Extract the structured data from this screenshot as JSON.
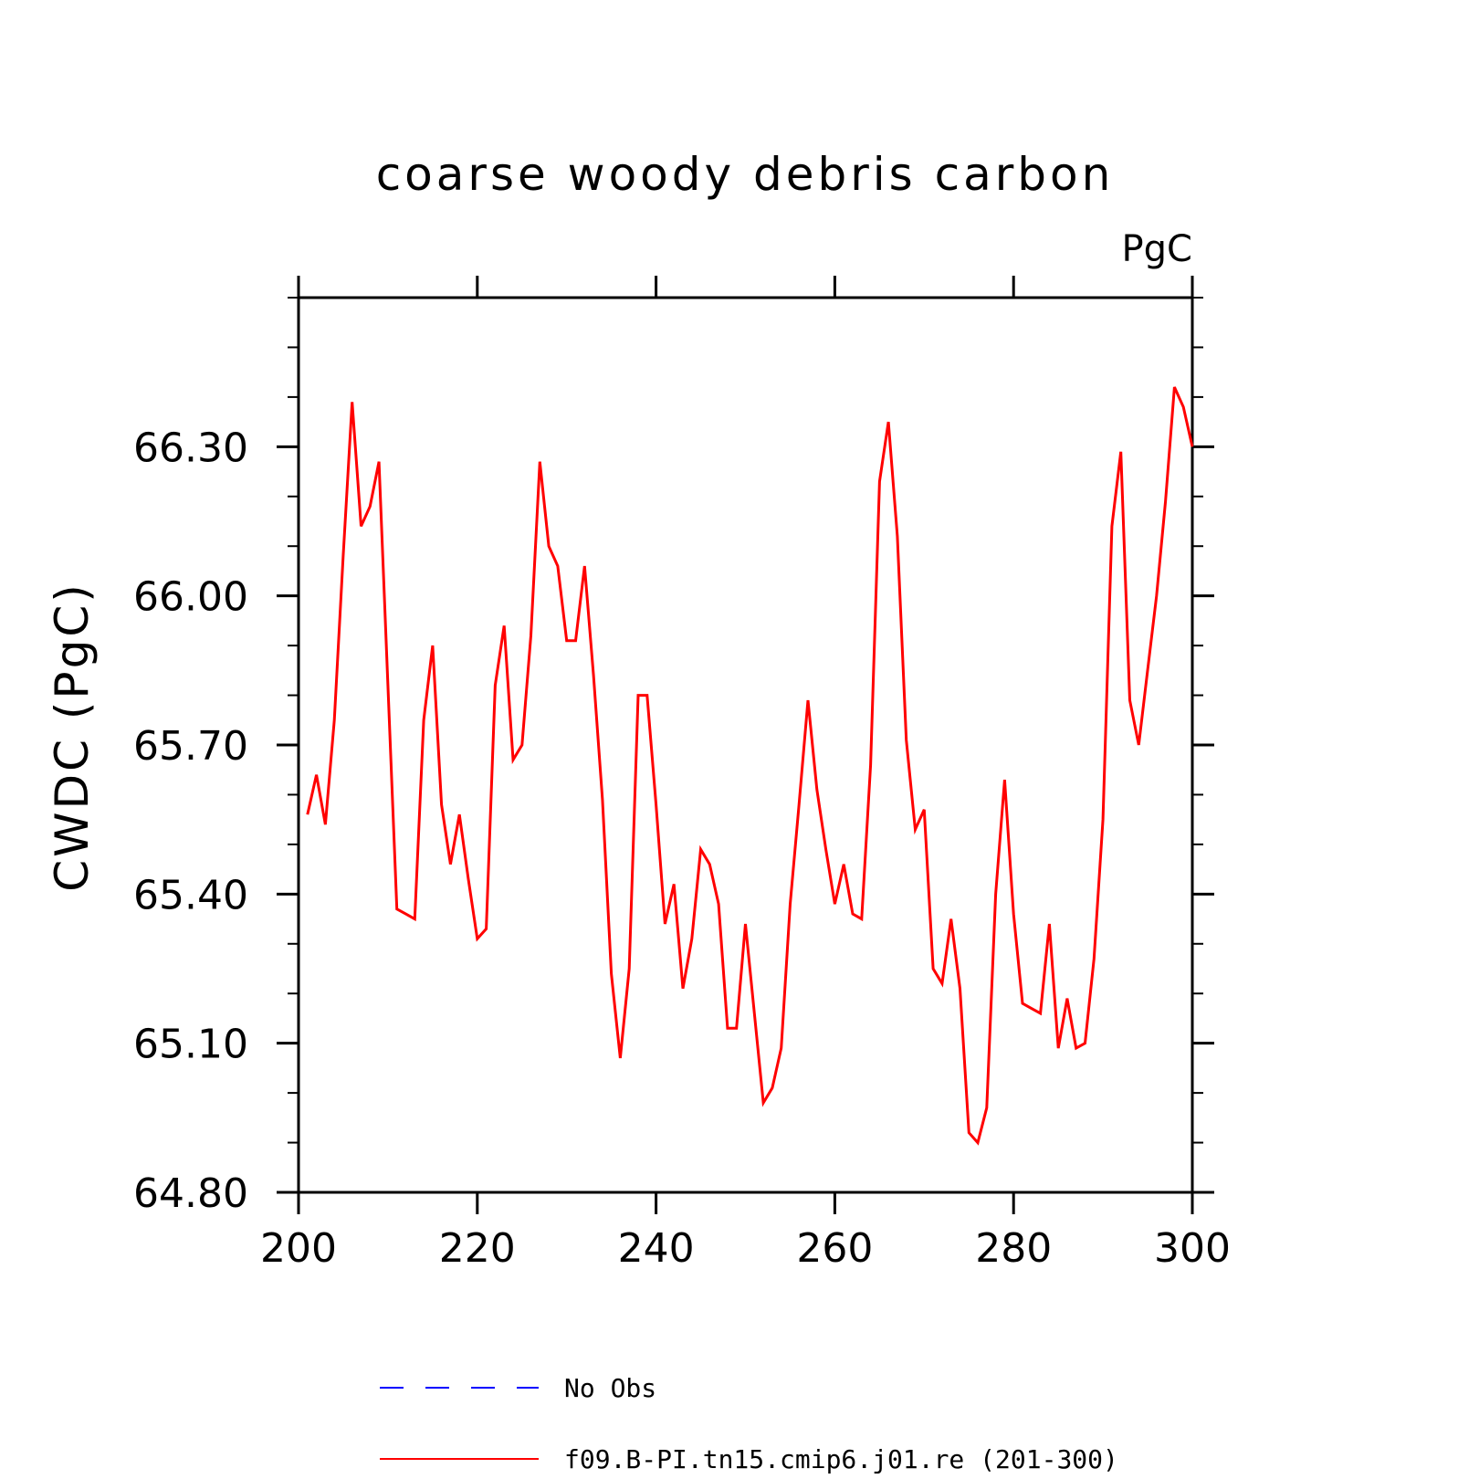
{
  "chart_data": {
    "type": "line",
    "title": "coarse woody debris carbon",
    "units": "PgC",
    "ylabel": "CWDC  (PgC)",
    "xlabel": "",
    "xlim": [
      200,
      300
    ],
    "ylim": [
      64.8,
      66.6
    ],
    "x_ticks": [
      200,
      220,
      240,
      260,
      280,
      300
    ],
    "y_ticks": [
      "64.80",
      "65.10",
      "65.40",
      "65.70",
      "66.00",
      "66.30"
    ],
    "legend_placement": "bottom",
    "colors": {
      "obs": "#0000ff",
      "model": "#ff0000"
    },
    "series": [
      {
        "name": "No Obs",
        "style": "dashed",
        "values": []
      },
      {
        "name": "f09.B-PI.tn15.cmip6.j01.re (201-300)",
        "style": "solid",
        "x_start": 201,
        "values": [
          65.56,
          65.64,
          65.54,
          65.75,
          66.08,
          66.39,
          66.14,
          66.18,
          66.27,
          65.82,
          65.37,
          65.36,
          65.35,
          65.75,
          65.9,
          65.58,
          65.46,
          65.56,
          65.43,
          65.31,
          65.33,
          65.82,
          65.94,
          65.67,
          65.7,
          65.92,
          66.27,
          66.1,
          66.06,
          65.91,
          65.91,
          66.06,
          65.84,
          65.59,
          65.24,
          65.07,
          65.25,
          65.8,
          65.8,
          65.58,
          65.34,
          65.42,
          65.21,
          65.31,
          65.49,
          65.46,
          65.38,
          65.13,
          65.13,
          65.34,
          65.16,
          64.98,
          65.01,
          65.09,
          65.38,
          65.58,
          65.79,
          65.61,
          65.49,
          65.38,
          65.46,
          65.36,
          65.35,
          65.66,
          66.23,
          66.35,
          66.12,
          65.71,
          65.53,
          65.57,
          65.25,
          65.22,
          65.35,
          65.21,
          64.92,
          64.9,
          64.97,
          65.4,
          65.63,
          65.36,
          65.18,
          65.17,
          65.16,
          65.34,
          65.09,
          65.19,
          65.09,
          65.1,
          65.27,
          65.55,
          66.14,
          66.29,
          65.79,
          65.7,
          65.85,
          66.0,
          66.19,
          66.42,
          66.38,
          66.3
        ]
      }
    ]
  }
}
